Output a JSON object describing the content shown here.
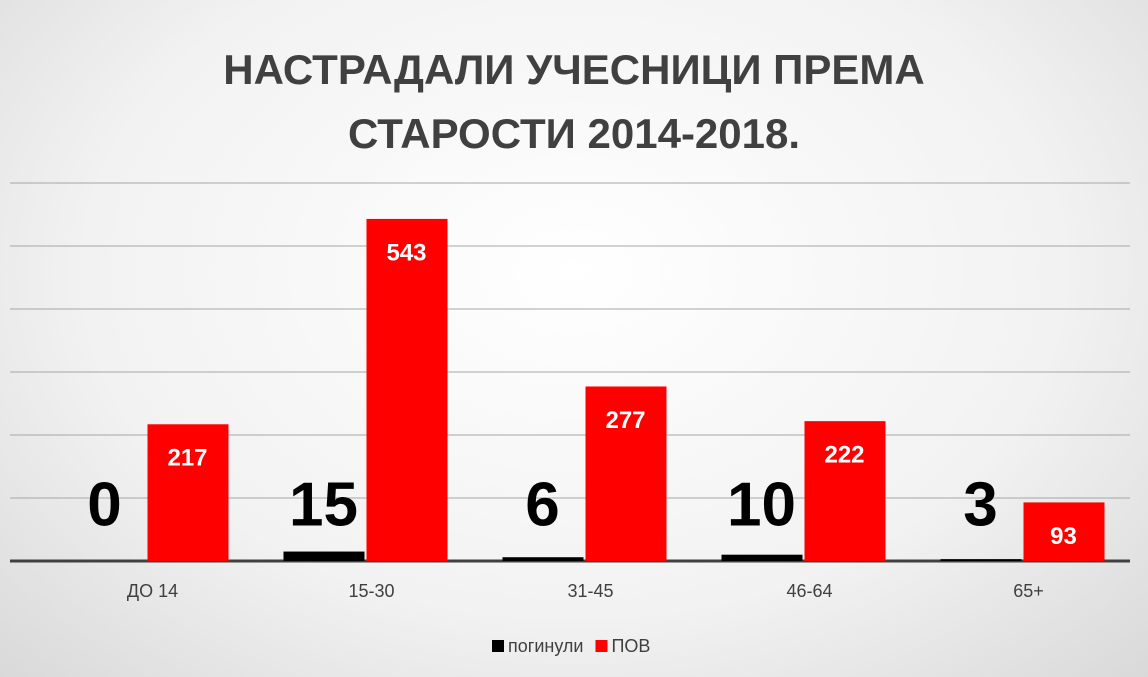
{
  "chart_data": {
    "type": "bar",
    "title": "НАСТРАДАЛИ УЧЕСНИЦИ ПРЕМА СТАРОСТИ 2014-2018.",
    "categories": [
      "ДО 14",
      "15-30",
      "31-45",
      "46-64",
      "65+"
    ],
    "series": [
      {
        "name": "погинули",
        "color": "#000000",
        "values": [
          0,
          15,
          6,
          10,
          3
        ]
      },
      {
        "name": "ПОВ",
        "color": "#ff0000",
        "values": [
          217,
          543,
          277,
          222,
          93
        ]
      }
    ],
    "ylim": [
      0,
      600
    ],
    "yticks": [
      0,
      100,
      200,
      300,
      400,
      500,
      600
    ],
    "grid": true
  }
}
